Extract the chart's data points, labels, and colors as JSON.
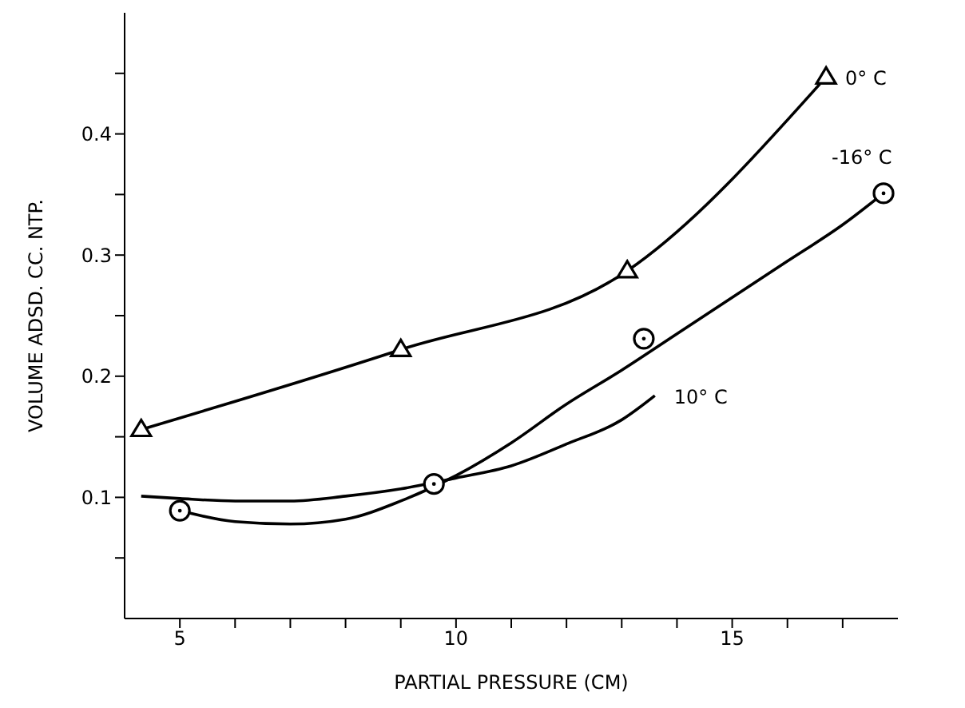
{
  "chart_data": {
    "type": "line",
    "xlabel": "PARTIAL PRESSURE (CM)",
    "ylabel": "VOLUME ADSD. CC. NTP.",
    "xlim": [
      4,
      18
    ],
    "xticks": [
      5,
      {
        "value": 6,
        "label": null
      },
      {
        "value": 7,
        "label": null
      },
      {
        "value": 8,
        "label": null
      },
      {
        "value": 9,
        "label": null
      },
      10,
      {
        "value": 11,
        "label": null
      },
      {
        "value": 12,
        "label": null
      },
      {
        "value": 13,
        "label": null
      },
      {
        "value": 14,
        "label": null
      },
      15,
      {
        "value": 16,
        "label": null
      },
      {
        "value": 17,
        "label": null
      }
    ],
    "ylim": [
      0,
      0.5
    ],
    "yticks": [
      {
        "value": 0.05,
        "label": null
      },
      0.1,
      {
        "value": 0.15,
        "label": null
      },
      0.2,
      {
        "value": 0.25,
        "label": null
      },
      0.3,
      {
        "value": 0.35,
        "label": null
      },
      0.4,
      {
        "value": 0.45,
        "label": null
      }
    ],
    "grid": false,
    "legend": false,
    "series": [
      {
        "name": "0° C",
        "marker": "triangle",
        "color": "#000000",
        "x": [
          4.3,
          9.0,
          13.1,
          16.7
        ],
        "values": [
          0.156,
          0.222,
          0.287,
          0.447
        ]
      },
      {
        "name": "-16° C",
        "type": "scatter",
        "marker": "circle",
        "color": "#000000",
        "x": [
          5.0,
          9.6,
          13.4,
          17.74
        ],
        "values": [
          0.089,
          0.111,
          0.231,
          0.351
        ]
      },
      {
        "marker": "none",
        "color": "#000000",
        "x": [
          5.0,
          6,
          7,
          8,
          9,
          10,
          11,
          12,
          13,
          14,
          15,
          16,
          17,
          17.74
        ],
        "values": [
          0.089,
          0.08,
          0.078,
          0.082,
          0.097,
          0.118,
          0.145,
          0.177,
          0.205,
          0.235,
          0.265,
          0.295,
          0.325,
          0.351
        ]
      },
      {
        "name": "10° C",
        "marker": "none",
        "color": "#000000",
        "x": [
          4.3,
          5,
          6,
          7,
          8,
          9,
          10,
          11,
          12,
          13,
          13.6
        ],
        "values": [
          0.101,
          0.099,
          0.097,
          0.097,
          0.101,
          0.107,
          0.116,
          0.126,
          0.144,
          0.164,
          0.184
        ]
      }
    ]
  }
}
